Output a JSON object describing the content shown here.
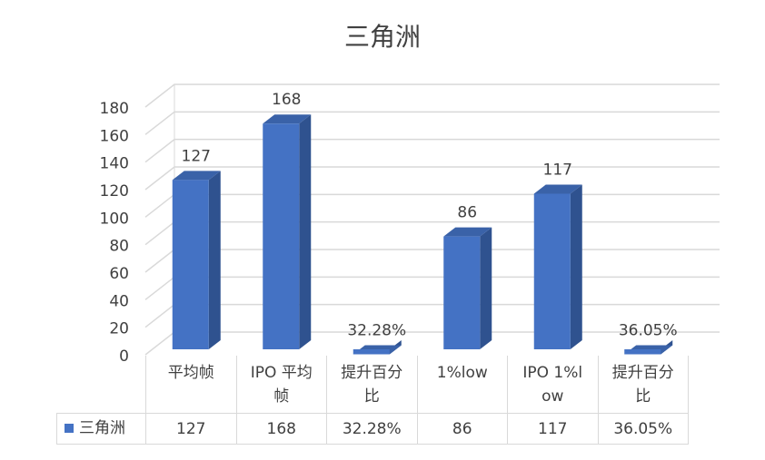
{
  "chart_data": {
    "type": "bar3d",
    "title": "三角洲",
    "categories": [
      "平均帧",
      "IPO 平均帧",
      "提升百分比",
      "1%low",
      "IPO 1%low",
      "提升百分比"
    ],
    "series": [
      {
        "name": "三角洲",
        "color": "#4472c4",
        "values": [
          127,
          168,
          0.3228,
          86,
          117,
          0.3605
        ],
        "value_labels": [
          "127",
          "168",
          "32.28%",
          "86",
          "117",
          "36.05%"
        ]
      }
    ],
    "ylim": [
      0,
      180
    ],
    "yticks": [
      0,
      20,
      40,
      60,
      80,
      100,
      120,
      140,
      160,
      180
    ],
    "grid": true,
    "data_table": true
  }
}
